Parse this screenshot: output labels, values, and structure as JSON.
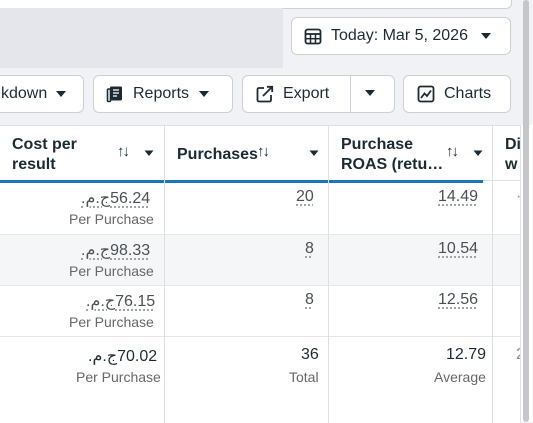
{
  "toolbar": {
    "date_label": "Today: Mar 5, 2026",
    "breakdown_label": "kdown",
    "reports_label": "Reports",
    "export_label": "Export",
    "charts_label": "Charts"
  },
  "table": {
    "headers": {
      "cost_per_result_line1": "Cost per",
      "cost_per_result_line2": "result",
      "purchases": "Purchases",
      "roas_line1": "Purchase",
      "roas_line2": "ROAS (retu…",
      "partial_line1": "Di",
      "partial_line2": "w"
    },
    "sort_glyph": "↑↓",
    "rows": [
      {
        "cost": "56.24ج.م.",
        "cost_sub": "Per Purchase",
        "purchases": "20",
        "roas": "14.49",
        "partial": "·"
      },
      {
        "cost": "98.33ج.م.",
        "cost_sub": "Per Purchase",
        "purchases": "8",
        "roas": "10.54",
        "partial": ""
      },
      {
        "cost": "76.15ج.م.",
        "cost_sub": "Per Purchase",
        "purchases": "8",
        "roas": "12.56",
        "partial": ""
      }
    ],
    "totals": {
      "cost": "70.02ج.م.",
      "cost_sub": "Per Purchase",
      "purchases": "36",
      "purchases_sub": "Total",
      "roas": "12.79",
      "roas_sub": "Average",
      "partial": "2"
    }
  },
  "colors": {
    "accent_line": "#1877b8",
    "row_alt": "#f5f6f7"
  },
  "icons": {
    "date": "calendar-icon",
    "reports": "reports-icon",
    "export": "export-icon",
    "charts": "chart-icon"
  }
}
